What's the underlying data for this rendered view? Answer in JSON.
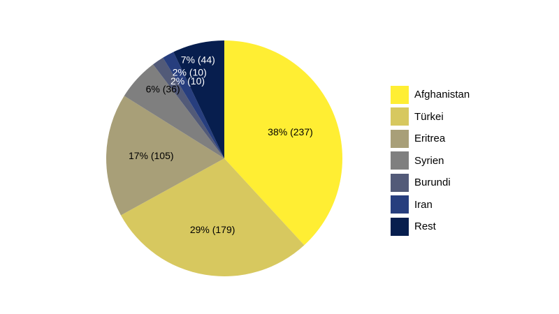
{
  "chart_data": {
    "type": "pie",
    "title": "",
    "slices": [
      {
        "name": "Afghanistan",
        "value": 237,
        "percent": 38,
        "label": "38% (237)",
        "color": "#FFEE33",
        "label_color": "#000000"
      },
      {
        "name": "Türkei",
        "value": 179,
        "percent": 29,
        "label": "29% (179)",
        "color": "#D7C85F",
        "label_color": "#000000"
      },
      {
        "name": "Eritrea",
        "value": 105,
        "percent": 17,
        "label": "17% (105)",
        "color": "#A89F78",
        "label_color": "#000000"
      },
      {
        "name": "Syrien",
        "value": 36,
        "percent": 6,
        "label": "6% (36)",
        "color": "#7F7F7F",
        "label_color": "#000000"
      },
      {
        "name": "Burundi",
        "value": 10,
        "percent": 2,
        "label": "2% (10)",
        "color": "#525A78",
        "label_color": "#ffffff"
      },
      {
        "name": "Iran",
        "value": 10,
        "percent": 2,
        "label": "2% (10)",
        "color": "#273E7E",
        "label_color": "#ffffff"
      },
      {
        "name": "Rest",
        "value": 44,
        "percent": 7,
        "label": "7% (44)",
        "color": "#071E4E",
        "label_color": "#ffffff"
      }
    ],
    "legend_position": "right"
  }
}
